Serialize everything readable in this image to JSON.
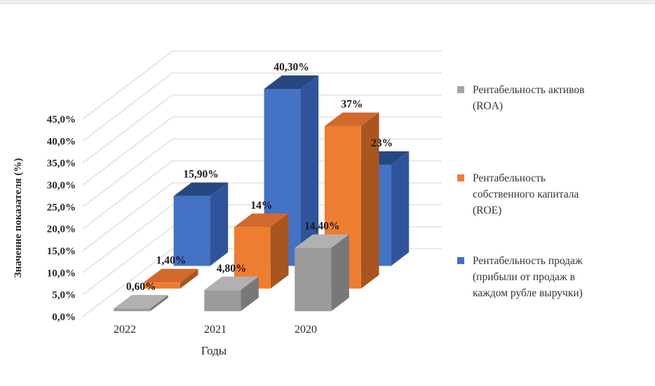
{
  "chart_data": {
    "type": "bar",
    "projection": "3d-column",
    "title": "",
    "xlabel": "Годы",
    "ylabel": "Значение показателя (%)",
    "categories": [
      "2022",
      "2021",
      "2020"
    ],
    "series": [
      {
        "name": "Рентабельность активов (ROA)",
        "color": "#A6A6A6",
        "values": [
          0.6,
          4.8,
          14.4
        ],
        "data_labels": [
          "0,60%",
          "4,80%",
          "14,40%"
        ]
      },
      {
        "name": "Рентабельность собственного капитала (ROE)",
        "color": "#ED7D31",
        "values": [
          1.4,
          14.0,
          37.0
        ],
        "data_labels": [
          "1,40%",
          "14%",
          "37%"
        ]
      },
      {
        "name": "Рентабельность продаж (прибыли от продаж в каждом рубле выручки)",
        "color": "#4472C4",
        "values": [
          15.9,
          40.3,
          23.0
        ],
        "data_labels": [
          "15,90%",
          "40,30%",
          "23%"
        ]
      }
    ],
    "ylim": [
      0,
      45
    ],
    "y_tick_step": 5,
    "y_tick_labels": [
      "0,0%",
      "5,0%",
      "10,0%",
      "15,0%",
      "20,0%",
      "25,0%",
      "30,0%",
      "35,0%",
      "40,0%",
      "45,0%"
    ],
    "grid": true,
    "legend_position": "right",
    "legend_items": [
      {
        "lines": [
          "Рентабельность активов",
          "(ROA)"
        ]
      },
      {
        "lines": [
          "Рентабельность",
          "собственного капитала",
          "(ROE)"
        ]
      },
      {
        "lines": [
          "Рентабельность продаж",
          "(прибыли от продаж в",
          "каждом рубле выручки)"
        ]
      }
    ]
  }
}
